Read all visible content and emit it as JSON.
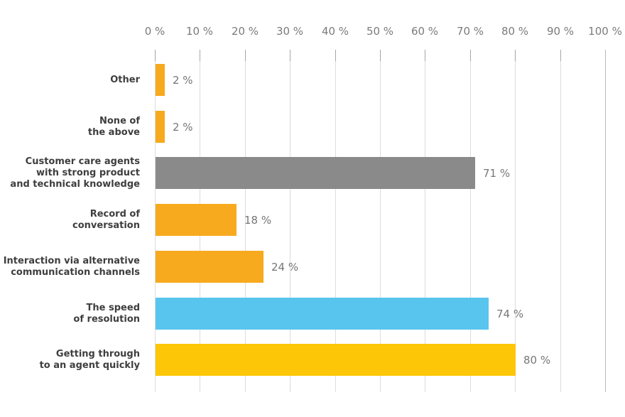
{
  "chart_data": {
    "type": "bar",
    "orientation": "horizontal",
    "title": "",
    "xlabel": "",
    "ylabel": "",
    "xlim": [
      0,
      100
    ],
    "x_ticks": [
      "0 %",
      "10 %",
      "20 %",
      "30 %",
      "40 %",
      "50 %",
      "60 %",
      "70 %",
      "80 %",
      "90 %",
      "100 %"
    ],
    "x_tick_values": [
      0,
      10,
      20,
      30,
      40,
      50,
      60,
      70,
      80,
      90,
      100
    ],
    "grid": true,
    "legend": false,
    "categories": [
      "Other",
      "None of\nthe above",
      "Customer care agents\nwith strong product\nand technical knowledge",
      "Record of\nconversation",
      "Interaction via alternative\ncommunication channels",
      "The speed\nof resolution",
      "Getting through\nto an agent quickly"
    ],
    "values": [
      2,
      2,
      71,
      18,
      24,
      74,
      80
    ],
    "value_labels": [
      "2 %",
      "2 %",
      "71 %",
      "18 %",
      "24 %",
      "74 %",
      "80 %"
    ],
    "bar_colors": [
      "#F7AA1E",
      "#F7AA1E",
      "#8A8A8A",
      "#F7AA1E",
      "#F7AA1E",
      "#58C5EF",
      "#FDC607"
    ]
  },
  "colors": {
    "background": "#FFFFFF",
    "orange": "#F7AA1E",
    "yellow": "#FDC607",
    "blue": "#58C5EF",
    "gray_bar": "#8A8A8A",
    "category_text": "#3E3E3E",
    "value_text": "#767676",
    "axis_text": "#7B7B7B",
    "gridline": "#DCDCDC",
    "tick_stub": "#A6A6A6",
    "end_gridline": "#B8B8B8"
  }
}
